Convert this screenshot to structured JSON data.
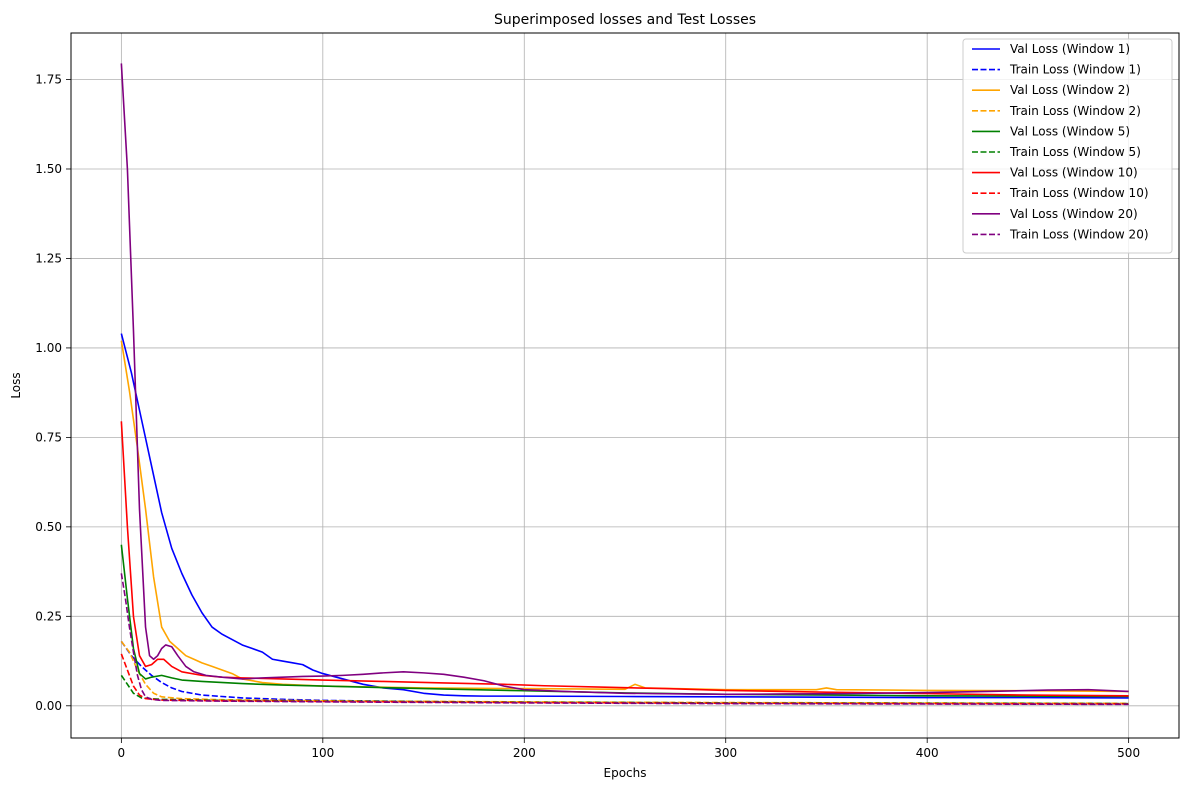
{
  "chart_data": {
    "type": "line",
    "title": "Superimposed losses and Test Losses",
    "xlabel": "Epochs",
    "ylabel": "Loss",
    "xlim": [
      -25,
      525
    ],
    "ylim": [
      -0.09,
      1.88
    ],
    "xticks": [
      0,
      100,
      200,
      300,
      400,
      500
    ],
    "yticks": [
      0.0,
      0.25,
      0.5,
      0.75,
      1.0,
      1.25,
      1.5,
      1.75
    ],
    "grid": true,
    "legend_position": "top-right",
    "colors": {
      "window1": "#0000ff",
      "window2": "#ffa500",
      "window5": "#008000",
      "window10": "#ff0000",
      "window20": "#800080"
    },
    "series": [
      {
        "name": "Val Loss (Window 1)",
        "color": "#0000ff",
        "dash": "solid",
        "points": [
          [
            0,
            1.04
          ],
          [
            5,
            0.93
          ],
          [
            10,
            0.8
          ],
          [
            15,
            0.67
          ],
          [
            20,
            0.54
          ],
          [
            25,
            0.44
          ],
          [
            30,
            0.37
          ],
          [
            35,
            0.31
          ],
          [
            40,
            0.26
          ],
          [
            45,
            0.22
          ],
          [
            50,
            0.2
          ],
          [
            55,
            0.185
          ],
          [
            60,
            0.17
          ],
          [
            65,
            0.16
          ],
          [
            70,
            0.15
          ],
          [
            75,
            0.13
          ],
          [
            80,
            0.125
          ],
          [
            85,
            0.12
          ],
          [
            90,
            0.115
          ],
          [
            95,
            0.1
          ],
          [
            100,
            0.09
          ],
          [
            110,
            0.075
          ],
          [
            120,
            0.06
          ],
          [
            130,
            0.05
          ],
          [
            140,
            0.045
          ],
          [
            150,
            0.035
          ],
          [
            160,
            0.03
          ],
          [
            170,
            0.028
          ],
          [
            180,
            0.027
          ],
          [
            200,
            0.027
          ],
          [
            250,
            0.026
          ],
          [
            300,
            0.025
          ],
          [
            350,
            0.024
          ],
          [
            400,
            0.023
          ],
          [
            450,
            0.023
          ],
          [
            500,
            0.022
          ]
        ]
      },
      {
        "name": "Train Loss (Window 1)",
        "color": "#0000ff",
        "dash": "dashed",
        "points": [
          [
            0,
            0.18
          ],
          [
            5,
            0.14
          ],
          [
            10,
            0.11
          ],
          [
            15,
            0.085
          ],
          [
            20,
            0.065
          ],
          [
            25,
            0.05
          ],
          [
            30,
            0.04
          ],
          [
            40,
            0.03
          ],
          [
            50,
            0.026
          ],
          [
            60,
            0.022
          ],
          [
            80,
            0.018
          ],
          [
            100,
            0.015
          ],
          [
            150,
            0.012
          ],
          [
            200,
            0.01
          ],
          [
            300,
            0.008
          ],
          [
            400,
            0.007
          ],
          [
            500,
            0.006
          ]
        ]
      },
      {
        "name": "Val Loss (Window 2)",
        "color": "#ffa500",
        "dash": "solid",
        "points": [
          [
            0,
            1.02
          ],
          [
            4,
            0.88
          ],
          [
            8,
            0.72
          ],
          [
            12,
            0.55
          ],
          [
            16,
            0.36
          ],
          [
            20,
            0.22
          ],
          [
            24,
            0.18
          ],
          [
            28,
            0.16
          ],
          [
            32,
            0.14
          ],
          [
            36,
            0.13
          ],
          [
            40,
            0.12
          ],
          [
            45,
            0.11
          ],
          [
            50,
            0.1
          ],
          [
            55,
            0.09
          ],
          [
            60,
            0.075
          ],
          [
            70,
            0.065
          ],
          [
            80,
            0.06
          ],
          [
            100,
            0.055
          ],
          [
            150,
            0.05
          ],
          [
            200,
            0.048
          ],
          [
            250,
            0.046
          ],
          [
            255,
            0.06
          ],
          [
            260,
            0.05
          ],
          [
            300,
            0.045
          ],
          [
            345,
            0.045
          ],
          [
            350,
            0.05
          ],
          [
            355,
            0.045
          ],
          [
            400,
            0.043
          ],
          [
            450,
            0.042
          ],
          [
            500,
            0.04
          ]
        ]
      },
      {
        "name": "Train Loss (Window 2)",
        "color": "#ffa500",
        "dash": "dashed",
        "points": [
          [
            0,
            0.18
          ],
          [
            4,
            0.15
          ],
          [
            8,
            0.1
          ],
          [
            12,
            0.06
          ],
          [
            16,
            0.035
          ],
          [
            20,
            0.025
          ],
          [
            30,
            0.02
          ],
          [
            50,
            0.017
          ],
          [
            100,
            0.014
          ],
          [
            200,
            0.011
          ],
          [
            300,
            0.009
          ],
          [
            400,
            0.008
          ],
          [
            500,
            0.007
          ]
        ]
      },
      {
        "name": "Val Loss (Window 5)",
        "color": "#008000",
        "dash": "solid",
        "points": [
          [
            0,
            0.45
          ],
          [
            3,
            0.3
          ],
          [
            6,
            0.16
          ],
          [
            9,
            0.09
          ],
          [
            12,
            0.075
          ],
          [
            15,
            0.08
          ],
          [
            20,
            0.085
          ],
          [
            25,
            0.078
          ],
          [
            30,
            0.072
          ],
          [
            40,
            0.068
          ],
          [
            60,
            0.062
          ],
          [
            80,
            0.058
          ],
          [
            100,
            0.055
          ],
          [
            150,
            0.048
          ],
          [
            200,
            0.042
          ],
          [
            250,
            0.036
          ],
          [
            300,
            0.032
          ],
          [
            400,
            0.028
          ],
          [
            500,
            0.026
          ]
        ]
      },
      {
        "name": "Train Loss (Window 5)",
        "color": "#008000",
        "dash": "dashed",
        "points": [
          [
            0,
            0.085
          ],
          [
            3,
            0.06
          ],
          [
            6,
            0.035
          ],
          [
            10,
            0.022
          ],
          [
            20,
            0.018
          ],
          [
            50,
            0.015
          ],
          [
            100,
            0.013
          ],
          [
            200,
            0.01
          ],
          [
            300,
            0.008
          ],
          [
            400,
            0.007
          ],
          [
            500,
            0.006
          ]
        ]
      },
      {
        "name": "Val Loss (Window 10)",
        "color": "#ff0000",
        "dash": "solid",
        "points": [
          [
            0,
            0.795
          ],
          [
            3,
            0.5
          ],
          [
            6,
            0.25
          ],
          [
            9,
            0.14
          ],
          [
            12,
            0.11
          ],
          [
            15,
            0.115
          ],
          [
            18,
            0.13
          ],
          [
            21,
            0.13
          ],
          [
            25,
            0.11
          ],
          [
            30,
            0.095
          ],
          [
            40,
            0.085
          ],
          [
            50,
            0.08
          ],
          [
            60,
            0.078
          ],
          [
            80,
            0.075
          ],
          [
            100,
            0.072
          ],
          [
            130,
            0.068
          ],
          [
            160,
            0.064
          ],
          [
            190,
            0.06
          ],
          [
            210,
            0.056
          ],
          [
            240,
            0.052
          ],
          [
            270,
            0.048
          ],
          [
            300,
            0.043
          ],
          [
            350,
            0.038
          ],
          [
            400,
            0.034
          ],
          [
            450,
            0.03
          ],
          [
            500,
            0.028
          ]
        ]
      },
      {
        "name": "Train Loss (Window 10)",
        "color": "#ff0000",
        "dash": "dashed",
        "points": [
          [
            0,
            0.145
          ],
          [
            3,
            0.1
          ],
          [
            6,
            0.055
          ],
          [
            9,
            0.03
          ],
          [
            12,
            0.02
          ],
          [
            20,
            0.016
          ],
          [
            50,
            0.014
          ],
          [
            100,
            0.012
          ],
          [
            200,
            0.009
          ],
          [
            300,
            0.007
          ],
          [
            400,
            0.006
          ],
          [
            500,
            0.005
          ]
        ]
      },
      {
        "name": "Val Loss (Window 20)",
        "color": "#800080",
        "dash": "solid",
        "points": [
          [
            0,
            1.795
          ],
          [
            3,
            1.5
          ],
          [
            6,
            1.05
          ],
          [
            9,
            0.55
          ],
          [
            12,
            0.22
          ],
          [
            14,
            0.14
          ],
          [
            16,
            0.13
          ],
          [
            18,
            0.14
          ],
          [
            20,
            0.16
          ],
          [
            22,
            0.17
          ],
          [
            25,
            0.165
          ],
          [
            28,
            0.14
          ],
          [
            32,
            0.11
          ],
          [
            36,
            0.095
          ],
          [
            42,
            0.085
          ],
          [
            50,
            0.08
          ],
          [
            60,
            0.075
          ],
          [
            70,
            0.078
          ],
          [
            80,
            0.08
          ],
          [
            90,
            0.082
          ],
          [
            100,
            0.083
          ],
          [
            110,
            0.085
          ],
          [
            120,
            0.088
          ],
          [
            130,
            0.092
          ],
          [
            140,
            0.095
          ],
          [
            150,
            0.092
          ],
          [
            160,
            0.088
          ],
          [
            170,
            0.08
          ],
          [
            180,
            0.07
          ],
          [
            190,
            0.055
          ],
          [
            200,
            0.045
          ],
          [
            220,
            0.04
          ],
          [
            250,
            0.035
          ],
          [
            280,
            0.033
          ],
          [
            300,
            0.032
          ],
          [
            330,
            0.033
          ],
          [
            360,
            0.034
          ],
          [
            400,
            0.037
          ],
          [
            430,
            0.04
          ],
          [
            460,
            0.044
          ],
          [
            480,
            0.045
          ],
          [
            500,
            0.04
          ]
        ]
      },
      {
        "name": "Train Loss (Window 20)",
        "color": "#800080",
        "dash": "dashed",
        "points": [
          [
            0,
            0.37
          ],
          [
            2,
            0.3
          ],
          [
            4,
            0.22
          ],
          [
            6,
            0.15
          ],
          [
            8,
            0.085
          ],
          [
            10,
            0.045
          ],
          [
            12,
            0.025
          ],
          [
            15,
            0.018
          ],
          [
            20,
            0.015
          ],
          [
            50,
            0.013
          ],
          [
            100,
            0.011
          ],
          [
            200,
            0.008
          ],
          [
            300,
            0.006
          ],
          [
            400,
            0.005
          ],
          [
            500,
            0.004
          ]
        ]
      }
    ]
  }
}
